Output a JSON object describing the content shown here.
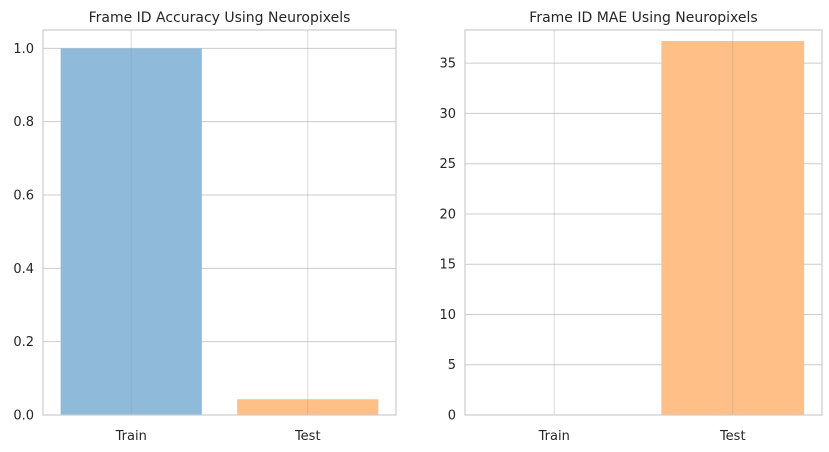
{
  "chart_data": [
    {
      "type": "bar",
      "title": "Frame ID Accuracy Using Neuropixels",
      "xlabel": "",
      "ylabel": "",
      "categories": [
        "Train",
        "Test"
      ],
      "values": [
        1.0,
        0.043
      ],
      "colors": [
        "#8fbad9",
        "#ffbf87"
      ],
      "ylim": [
        0,
        1.05
      ],
      "yticks": [
        0.0,
        0.2,
        0.4,
        0.6,
        0.8,
        1.0
      ],
      "ytick_labels": [
        "0.0",
        "0.2",
        "0.4",
        "0.6",
        "0.8",
        "1.0"
      ],
      "grid": true
    },
    {
      "type": "bar",
      "title": "Frame ID MAE Using Neuropixels",
      "xlabel": "",
      "ylabel": "",
      "categories": [
        "Train",
        "Test"
      ],
      "values": [
        0,
        37.2
      ],
      "colors": [
        "#8fbad9",
        "#ffbf87"
      ],
      "ylim": [
        0,
        38.3
      ],
      "yticks": [
        0,
        5,
        10,
        15,
        20,
        25,
        30,
        35
      ],
      "ytick_labels": [
        "0",
        "5",
        "10",
        "15",
        "20",
        "25",
        "30",
        "35"
      ],
      "grid": true
    }
  ]
}
